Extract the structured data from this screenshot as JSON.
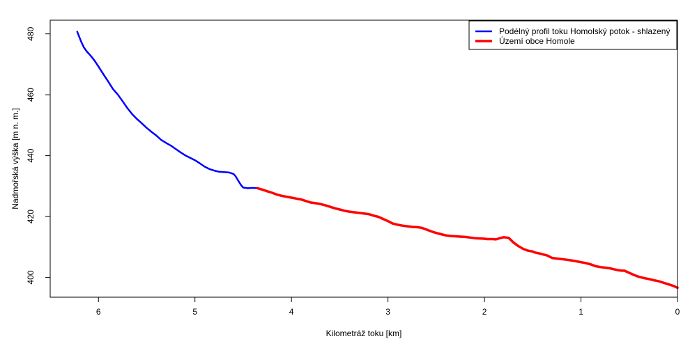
{
  "chart_data": {
    "type": "line",
    "xlabel": "Kilometráž toku [km]",
    "ylabel": "Nadmořská výška [m n. m.]",
    "xlim": [
      6.5,
      0
    ],
    "ylim": [
      393.5,
      484.5
    ],
    "x_ticks": [
      6,
      5,
      4,
      3,
      2,
      1,
      0
    ],
    "y_ticks": [
      400,
      420,
      440,
      460,
      480
    ],
    "x_tick_labels": [
      "6",
      "5",
      "4",
      "3",
      "2",
      "1",
      "0"
    ],
    "y_tick_labels": [
      "400",
      "420",
      "440",
      "460",
      "480"
    ],
    "grid": false,
    "legend_position": "top-right",
    "series": [
      {
        "name": "Podélný profil toku Homolský potok - shlazený",
        "color": "#0000ff",
        "x": [
          6.22,
          6.18,
          6.15,
          6.12,
          6.08,
          6.04,
          6.0,
          5.95,
          5.9,
          5.85,
          5.8,
          5.75,
          5.7,
          5.65,
          5.6,
          5.55,
          5.5,
          5.45,
          5.4,
          5.35,
          5.3,
          5.25,
          5.2,
          5.15,
          5.1,
          5.05,
          5.0,
          4.95,
          4.9,
          4.85,
          4.8,
          4.75,
          4.7,
          4.65,
          4.6,
          4.58,
          4.55,
          4.52,
          4.5,
          4.45,
          4.4,
          4.35
        ],
        "y": [
          480.7,
          477.5,
          475.5,
          474.2,
          472.8,
          471.2,
          469.3,
          466.8,
          464.4,
          461.9,
          460.1,
          457.9,
          455.6,
          453.6,
          452.0,
          450.6,
          449.1,
          447.8,
          446.6,
          445.2,
          444.2,
          443.3,
          442.2,
          441.1,
          440.1,
          439.3,
          438.5,
          437.5,
          436.4,
          435.6,
          435.1,
          434.7,
          434.6,
          434.5,
          434.0,
          433.3,
          431.7,
          430.2,
          429.5,
          429.3,
          429.4,
          429.3
        ]
      },
      {
        "name": "Území obce Homole",
        "color": "#ff0000",
        "x": [
          4.35,
          4.3,
          4.25,
          4.2,
          4.15,
          4.1,
          4.05,
          4.0,
          3.95,
          3.9,
          3.85,
          3.8,
          3.75,
          3.7,
          3.65,
          3.6,
          3.55,
          3.5,
          3.45,
          3.4,
          3.35,
          3.3,
          3.25,
          3.2,
          3.15,
          3.1,
          3.05,
          3.0,
          2.95,
          2.9,
          2.85,
          2.8,
          2.75,
          2.7,
          2.65,
          2.6,
          2.55,
          2.5,
          2.45,
          2.4,
          2.35,
          2.3,
          2.25,
          2.2,
          2.15,
          2.1,
          2.05,
          2.0,
          1.97,
          1.94,
          1.91,
          1.89,
          1.87,
          1.85,
          1.8,
          1.75,
          1.7,
          1.65,
          1.6,
          1.55,
          1.5,
          1.48,
          1.45,
          1.42,
          1.4,
          1.35,
          1.3,
          1.25,
          1.2,
          1.15,
          1.1,
          1.05,
          1.0,
          0.95,
          0.9,
          0.85,
          0.8,
          0.75,
          0.7,
          0.66,
          0.62,
          0.6,
          0.58,
          0.55,
          0.5,
          0.45,
          0.4,
          0.35,
          0.3,
          0.25,
          0.2,
          0.15,
          0.1,
          0.05,
          0.0
        ],
        "y": [
          429.3,
          428.8,
          428.3,
          427.8,
          427.2,
          426.8,
          426.5,
          426.2,
          425.9,
          425.6,
          425.1,
          424.6,
          424.4,
          424.1,
          423.7,
          423.2,
          422.7,
          422.3,
          421.9,
          421.6,
          421.4,
          421.2,
          421.0,
          420.8,
          420.3,
          419.9,
          419.2,
          418.5,
          417.7,
          417.3,
          417.0,
          416.8,
          416.6,
          416.5,
          416.3,
          415.7,
          415.1,
          414.6,
          414.2,
          413.8,
          413.6,
          413.5,
          413.4,
          413.3,
          413.1,
          412.9,
          412.8,
          412.7,
          412.6,
          412.6,
          412.6,
          412.5,
          412.6,
          412.8,
          413.2,
          413.0,
          411.5,
          410.3,
          409.4,
          408.8,
          408.5,
          408.2,
          408.0,
          407.8,
          407.6,
          407.2,
          406.4,
          406.2,
          406.0,
          405.8,
          405.6,
          405.3,
          405.0,
          404.7,
          404.3,
          403.7,
          403.4,
          403.2,
          403.0,
          402.7,
          402.4,
          402.3,
          402.2,
          402.2,
          401.5,
          400.8,
          400.2,
          399.8,
          399.5,
          399.1,
          398.8,
          398.3,
          397.8,
          397.3,
          396.6
        ]
      }
    ]
  }
}
